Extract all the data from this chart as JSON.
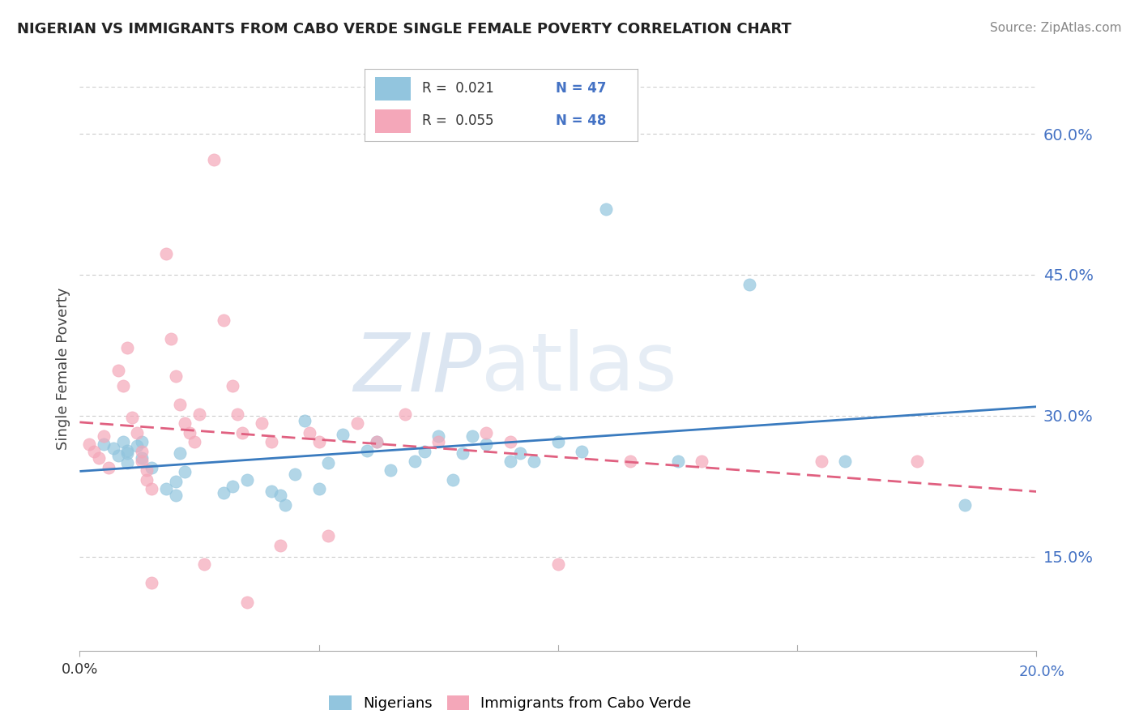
{
  "title": "NIGERIAN VS IMMIGRANTS FROM CABO VERDE SINGLE FEMALE POVERTY CORRELATION CHART",
  "source": "Source: ZipAtlas.com",
  "ylabel": "Single Female Poverty",
  "xlim": [
    0.0,
    0.2
  ],
  "ylim": [
    0.05,
    0.65
  ],
  "yticks": [
    0.15,
    0.3,
    0.45,
    0.6
  ],
  "ytick_labels": [
    "15.0%",
    "30.0%",
    "45.0%",
    "60.0%"
  ],
  "legend_r_blue": "R =  0.021",
  "legend_n_blue": "N = 47",
  "legend_r_pink": "R =  0.055",
  "legend_n_pink": "N = 48",
  "color_blue": "#92c5de",
  "color_pink": "#f4a7b9",
  "trend_blue": "#3a7bbf",
  "trend_pink": "#e06080",
  "blue_scatter": [
    [
      0.005,
      0.27
    ],
    [
      0.007,
      0.265
    ],
    [
      0.008,
      0.258
    ],
    [
      0.009,
      0.272
    ],
    [
      0.01,
      0.26
    ],
    [
      0.01,
      0.25
    ],
    [
      0.01,
      0.263
    ],
    [
      0.012,
      0.268
    ],
    [
      0.013,
      0.255
    ],
    [
      0.013,
      0.272
    ],
    [
      0.015,
      0.245
    ],
    [
      0.018,
      0.222
    ],
    [
      0.02,
      0.215
    ],
    [
      0.02,
      0.23
    ],
    [
      0.021,
      0.26
    ],
    [
      0.022,
      0.24
    ],
    [
      0.03,
      0.218
    ],
    [
      0.032,
      0.225
    ],
    [
      0.035,
      0.232
    ],
    [
      0.04,
      0.22
    ],
    [
      0.042,
      0.215
    ],
    [
      0.043,
      0.205
    ],
    [
      0.045,
      0.238
    ],
    [
      0.047,
      0.295
    ],
    [
      0.05,
      0.222
    ],
    [
      0.052,
      0.25
    ],
    [
      0.055,
      0.28
    ],
    [
      0.06,
      0.263
    ],
    [
      0.062,
      0.272
    ],
    [
      0.065,
      0.242
    ],
    [
      0.07,
      0.252
    ],
    [
      0.072,
      0.262
    ],
    [
      0.075,
      0.278
    ],
    [
      0.078,
      0.232
    ],
    [
      0.08,
      0.26
    ],
    [
      0.082,
      0.278
    ],
    [
      0.085,
      0.27
    ],
    [
      0.09,
      0.252
    ],
    [
      0.092,
      0.26
    ],
    [
      0.095,
      0.252
    ],
    [
      0.1,
      0.272
    ],
    [
      0.105,
      0.262
    ],
    [
      0.11,
      0.52
    ],
    [
      0.125,
      0.252
    ],
    [
      0.14,
      0.44
    ],
    [
      0.16,
      0.252
    ],
    [
      0.185,
      0.205
    ]
  ],
  "pink_scatter": [
    [
      0.002,
      0.27
    ],
    [
      0.003,
      0.262
    ],
    [
      0.004,
      0.255
    ],
    [
      0.005,
      0.278
    ],
    [
      0.006,
      0.245
    ],
    [
      0.008,
      0.348
    ],
    [
      0.009,
      0.332
    ],
    [
      0.01,
      0.372
    ],
    [
      0.011,
      0.298
    ],
    [
      0.012,
      0.282
    ],
    [
      0.013,
      0.262
    ],
    [
      0.013,
      0.252
    ],
    [
      0.014,
      0.242
    ],
    [
      0.014,
      0.232
    ],
    [
      0.015,
      0.222
    ],
    [
      0.015,
      0.122
    ],
    [
      0.018,
      0.472
    ],
    [
      0.019,
      0.382
    ],
    [
      0.02,
      0.342
    ],
    [
      0.021,
      0.312
    ],
    [
      0.022,
      0.292
    ],
    [
      0.023,
      0.282
    ],
    [
      0.024,
      0.272
    ],
    [
      0.025,
      0.302
    ],
    [
      0.026,
      0.142
    ],
    [
      0.028,
      0.572
    ],
    [
      0.03,
      0.402
    ],
    [
      0.032,
      0.332
    ],
    [
      0.033,
      0.302
    ],
    [
      0.034,
      0.282
    ],
    [
      0.035,
      0.102
    ],
    [
      0.038,
      0.292
    ],
    [
      0.04,
      0.272
    ],
    [
      0.042,
      0.162
    ],
    [
      0.048,
      0.282
    ],
    [
      0.05,
      0.272
    ],
    [
      0.052,
      0.172
    ],
    [
      0.058,
      0.292
    ],
    [
      0.062,
      0.272
    ],
    [
      0.068,
      0.302
    ],
    [
      0.075,
      0.272
    ],
    [
      0.085,
      0.282
    ],
    [
      0.09,
      0.272
    ],
    [
      0.1,
      0.142
    ],
    [
      0.115,
      0.252
    ],
    [
      0.13,
      0.252
    ],
    [
      0.155,
      0.252
    ],
    [
      0.175,
      0.252
    ]
  ],
  "watermark_zip": "ZIP",
  "watermark_atlas": "atlas",
  "background_color": "#ffffff",
  "grid_color": "#cccccc"
}
